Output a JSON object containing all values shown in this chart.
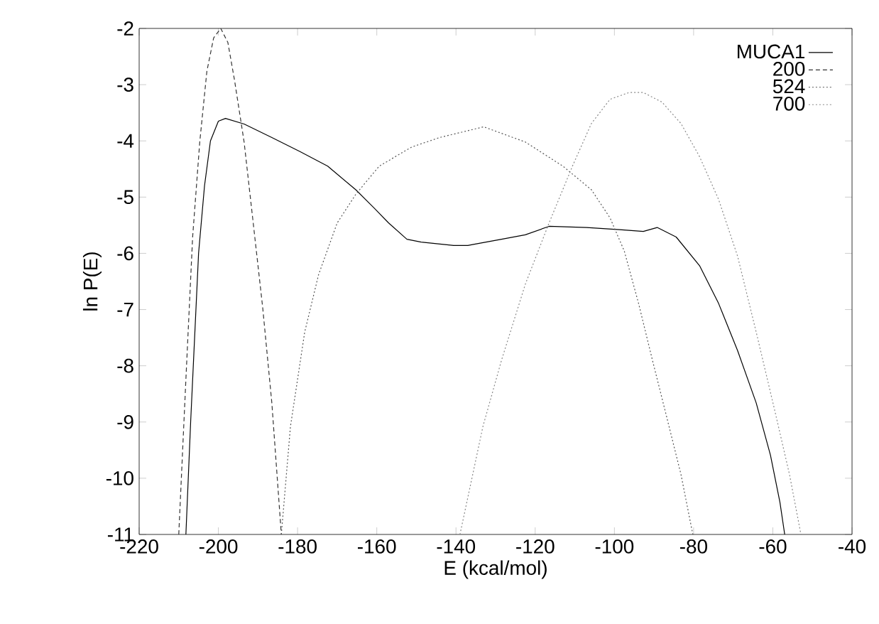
{
  "chart_data": {
    "type": "line",
    "xlabel": "E (kcal/mol)",
    "ylabel": "ln P(E)",
    "xlim": [
      -220,
      -40
    ],
    "ylim": [
      -11,
      -2
    ],
    "xticks": [
      -220,
      -200,
      -180,
      -160,
      -140,
      -120,
      -100,
      -80,
      -60,
      -40
    ],
    "yticks": [
      -2,
      -3,
      -4,
      -5,
      -6,
      -7,
      -8,
      -9,
      -10,
      -11
    ],
    "legend": "top right",
    "grid": false,
    "marker": "none",
    "series": [
      {
        "name": "MUCA1",
        "color": "#000000",
        "line_style": "solid",
        "x": [
          -208.2,
          -207,
          -206,
          -205,
          -203.5,
          -202,
          -200,
          -198.2,
          -193.5,
          -186.5,
          -179.4,
          -172.4,
          -165.3,
          -160.6,
          -157,
          -152.4,
          -148.8,
          -140.6,
          -137,
          -135.6,
          -128.5,
          -122.5,
          -116.5,
          -107,
          -98.7,
          -92.7,
          -89.2,
          -84.4,
          -78.5,
          -73.7,
          -68.9,
          -64.2,
          -60.6,
          -58.2,
          -57
        ],
        "values": [
          -11,
          -9,
          -7.5,
          -6,
          -4.8,
          -4,
          -3.65,
          -3.6,
          -3.7,
          -3.94,
          -4.19,
          -4.45,
          -4.87,
          -5.2,
          -5.46,
          -5.75,
          -5.8,
          -5.86,
          -5.86,
          -5.84,
          -5.75,
          -5.67,
          -5.52,
          -5.54,
          -5.58,
          -5.61,
          -5.54,
          -5.71,
          -6.22,
          -6.89,
          -7.73,
          -8.66,
          -9.59,
          -10.43,
          -11
        ]
      },
      {
        "name": "200",
        "color": "#333333",
        "line_style": "dashed",
        "x": [
          -210,
          -208.2,
          -206.5,
          -204.7,
          -202.9,
          -201.2,
          -199.4,
          -197.6,
          -195.9,
          -193.5,
          -191.2,
          -188.8,
          -186.5,
          -184.1
        ],
        "values": [
          -11,
          -8.24,
          -5.71,
          -4.02,
          -2.76,
          -2.17,
          -2,
          -2.25,
          -2.93,
          -4.02,
          -5.46,
          -6.97,
          -8.66,
          -11
        ]
      },
      {
        "name": "524",
        "color": "#555555",
        "line_style": "dotted",
        "x": [
          -184.1,
          -181.8,
          -178.2,
          -174.7,
          -170,
          -165.3,
          -159.4,
          -151.2,
          -144.1,
          -133,
          -122.5,
          -113,
          -105.8,
          -101.1,
          -97.5,
          -93.9,
          -90.4,
          -86.8,
          -83.2,
          -80.2
        ],
        "values": [
          -11,
          -9.08,
          -7.4,
          -6.38,
          -5.46,
          -4.95,
          -4.45,
          -4.11,
          -3.94,
          -3.75,
          -4.02,
          -4.45,
          -4.87,
          -5.37,
          -5.96,
          -6.89,
          -7.9,
          -8.91,
          -9.93,
          -11
        ]
      },
      {
        "name": "700",
        "color": "#888888",
        "line_style": "dotted",
        "x": [
          -139,
          -133.2,
          -128.5,
          -122.5,
          -116.5,
          -110.6,
          -105.8,
          -101.1,
          -96.3,
          -92.7,
          -88,
          -83.2,
          -78.5,
          -73.7,
          -68.9,
          -64.2,
          -59.4,
          -55.8,
          -52.9
        ],
        "values": [
          -11,
          -9.08,
          -7.9,
          -6.55,
          -5.46,
          -4.45,
          -3.69,
          -3.26,
          -3.14,
          -3.14,
          -3.31,
          -3.69,
          -4.28,
          -5.04,
          -6.05,
          -7.4,
          -8.83,
          -9.93,
          -11
        ]
      }
    ]
  }
}
